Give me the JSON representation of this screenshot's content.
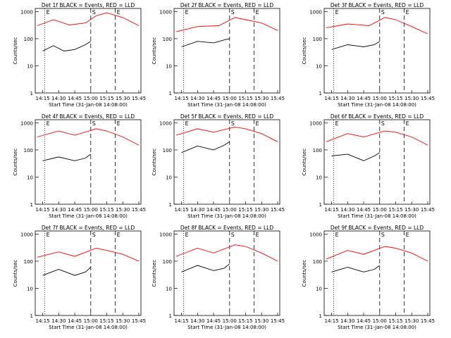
{
  "figure": {
    "start_time_label": "Start Time (31-Jan-08 14:08:00)",
    "ylabel": "Counts/sec",
    "x_ticks": [
      "14:15",
      "14:30",
      "14:45",
      "15:00",
      "15:15",
      "15:30",
      "15:45"
    ],
    "y_ticks": [
      "1",
      "10",
      "100",
      "1000"
    ],
    "markers": [
      "E",
      "S",
      "E"
    ],
    "colors": {
      "events": "#000000",
      "lld": "#ff0000",
      "axes": "#000000"
    }
  },
  "chart_data": [
    {
      "type": "line",
      "title": "Det 1f BLACK = Events, RED = LLD",
      "xlabel": "Start Time (31-Jan-08 14:08:00)",
      "ylabel": "Counts/sec",
      "y_scale": "log",
      "ylim": [
        1,
        1000
      ],
      "series": [
        {
          "name": "Events",
          "color": "#000000",
          "x": [
            "14:15",
            "14:25",
            "14:35",
            "14:45",
            "14:55",
            "15:00"
          ],
          "y": [
            35,
            55,
            35,
            40,
            60,
            80
          ]
        },
        {
          "name": "LLD",
          "color": "#ff0000",
          "x": [
            "14:10",
            "14:25",
            "14:40",
            "14:55",
            "15:05",
            "15:15",
            "15:30",
            "15:45"
          ],
          "y": [
            300,
            500,
            320,
            380,
            700,
            900,
            600,
            300
          ]
        }
      ]
    },
    {
      "type": "line",
      "title": "Det 2f BLACK = Events, RED = LLD",
      "xlabel": "Start Time (31-Jan-08 14:08:00)",
      "ylabel": "Counts/sec",
      "y_scale": "log",
      "ylim": [
        1,
        1000
      ],
      "series": [
        {
          "name": "Events",
          "color": "#000000",
          "x": [
            "14:15",
            "14:30",
            "14:45",
            "14:55",
            "15:00"
          ],
          "y": [
            50,
            80,
            70,
            90,
            100
          ]
        },
        {
          "name": "LLD",
          "color": "#ff0000",
          "x": [
            "14:10",
            "14:30",
            "14:50",
            "15:05",
            "15:15",
            "15:30",
            "15:45"
          ],
          "y": [
            180,
            280,
            300,
            600,
            500,
            380,
            200
          ]
        }
      ]
    },
    {
      "type": "line",
      "title": "Det 3f BLACK = Events, RED = LLD",
      "xlabel": "Start Time (31-Jan-08 14:08:00)",
      "ylabel": "Counts/sec",
      "y_scale": "log",
      "ylim": [
        1,
        1000
      ],
      "series": [
        {
          "name": "Events",
          "color": "#000000",
          "x": [
            "14:15",
            "14:30",
            "14:45",
            "14:55",
            "15:00"
          ],
          "y": [
            40,
            60,
            50,
            60,
            80
          ]
        },
        {
          "name": "LLD",
          "color": "#ff0000",
          "x": [
            "14:10",
            "14:30",
            "14:50",
            "15:05",
            "15:15",
            "15:30",
            "15:45"
          ],
          "y": [
            250,
            350,
            300,
            600,
            500,
            280,
            150
          ]
        }
      ]
    },
    {
      "type": "line",
      "title": "Det 4f BLACK = Events, RED = LLD",
      "xlabel": "Start Time (31-Jan-08 14:08:00)",
      "ylabel": "Counts/sec",
      "y_scale": "log",
      "ylim": [
        1,
        1000
      ],
      "series": [
        {
          "name": "Events",
          "color": "#000000",
          "x": [
            "14:15",
            "14:30",
            "14:45",
            "14:55",
            "15:00"
          ],
          "y": [
            40,
            55,
            40,
            50,
            70
          ]
        },
        {
          "name": "LLD",
          "color": "#ff0000",
          "x": [
            "14:10",
            "14:30",
            "14:45",
            "15:05",
            "15:15",
            "15:30",
            "15:45"
          ],
          "y": [
            300,
            500,
            350,
            600,
            500,
            300,
            150
          ]
        }
      ]
    },
    {
      "type": "line",
      "title": "Det 5f BLACK = Events, RED = LLD",
      "xlabel": "Start Time (31-Jan-08 14:08:00)",
      "ylabel": "Counts/sec",
      "y_scale": "log",
      "ylim": [
        1,
        1000
      ],
      "series": [
        {
          "name": "Events",
          "color": "#000000",
          "x": [
            "14:15",
            "14:30",
            "14:45",
            "14:55",
            "15:00"
          ],
          "y": [
            80,
            140,
            100,
            150,
            200
          ]
        },
        {
          "name": "LLD",
          "color": "#ff0000",
          "x": [
            "14:10",
            "14:30",
            "14:45",
            "15:05",
            "15:15",
            "15:30",
            "15:45"
          ],
          "y": [
            350,
            600,
            450,
            700,
            600,
            400,
            200
          ]
        }
      ]
    },
    {
      "type": "line",
      "title": "Det 6f BLACK = Events, RED = LLD",
      "xlabel": "Start Time (31-Jan-08 14:08:00)",
      "ylabel": "Counts/sec",
      "y_scale": "log",
      "ylim": [
        1,
        1000
      ],
      "series": [
        {
          "name": "Events",
          "color": "#000000",
          "x": [
            "14:15",
            "14:30",
            "14:45",
            "14:55",
            "15:00"
          ],
          "y": [
            60,
            70,
            40,
            60,
            80
          ]
        },
        {
          "name": "LLD",
          "color": "#ff0000",
          "x": [
            "14:10",
            "14:30",
            "14:45",
            "15:05",
            "15:15",
            "15:30",
            "15:45"
          ],
          "y": [
            200,
            400,
            300,
            500,
            450,
            300,
            150
          ]
        }
      ]
    },
    {
      "type": "line",
      "title": "Det 7f BLACK = Events, RED = LLD",
      "xlabel": "Start Time (31-Jan-08 14:08:00)",
      "ylabel": "Counts/sec",
      "y_scale": "log",
      "ylim": [
        1,
        1000
      ],
      "series": [
        {
          "name": "Events",
          "color": "#000000",
          "x": [
            "14:15",
            "14:30",
            "14:45",
            "14:55",
            "15:00"
          ],
          "y": [
            30,
            50,
            30,
            40,
            60
          ]
        },
        {
          "name": "LLD",
          "color": "#ff0000",
          "x": [
            "14:10",
            "14:30",
            "14:45",
            "15:05",
            "15:15",
            "15:30",
            "15:45"
          ],
          "y": [
            140,
            220,
            150,
            300,
            250,
            180,
            100
          ]
        }
      ]
    },
    {
      "type": "line",
      "title": "Det 8f BLACK = Events, RED = LLD",
      "xlabel": "Start Time (31-Jan-08 14:08:00)",
      "ylabel": "Counts/sec",
      "y_scale": "log",
      "ylim": [
        1,
        1000
      ],
      "series": [
        {
          "name": "Events",
          "color": "#000000",
          "x": [
            "14:15",
            "14:30",
            "14:45",
            "14:55",
            "15:00"
          ],
          "y": [
            40,
            70,
            45,
            55,
            80
          ]
        },
        {
          "name": "LLD",
          "color": "#ff0000",
          "x": [
            "14:10",
            "14:30",
            "14:45",
            "15:05",
            "15:15",
            "15:30",
            "15:45"
          ],
          "y": [
            150,
            300,
            200,
            400,
            350,
            200,
            100
          ]
        }
      ]
    },
    {
      "type": "line",
      "title": "Det 9f BLACK = Events, RED = LLD",
      "xlabel": "Start Time (31-Jan-08 14:08:00)",
      "ylabel": "Counts/sec",
      "y_scale": "log",
      "ylim": [
        1,
        1000
      ],
      "series": [
        {
          "name": "Events",
          "color": "#000000",
          "x": [
            "14:15",
            "14:30",
            "14:45",
            "14:55",
            "15:00"
          ],
          "y": [
            40,
            60,
            40,
            50,
            70
          ]
        },
        {
          "name": "LLD",
          "color": "#ff0000",
          "x": [
            "14:10",
            "14:30",
            "14:45",
            "15:05",
            "15:15",
            "15:30",
            "15:45"
          ],
          "y": [
            120,
            250,
            180,
            350,
            300,
            200,
            100
          ]
        }
      ]
    }
  ]
}
